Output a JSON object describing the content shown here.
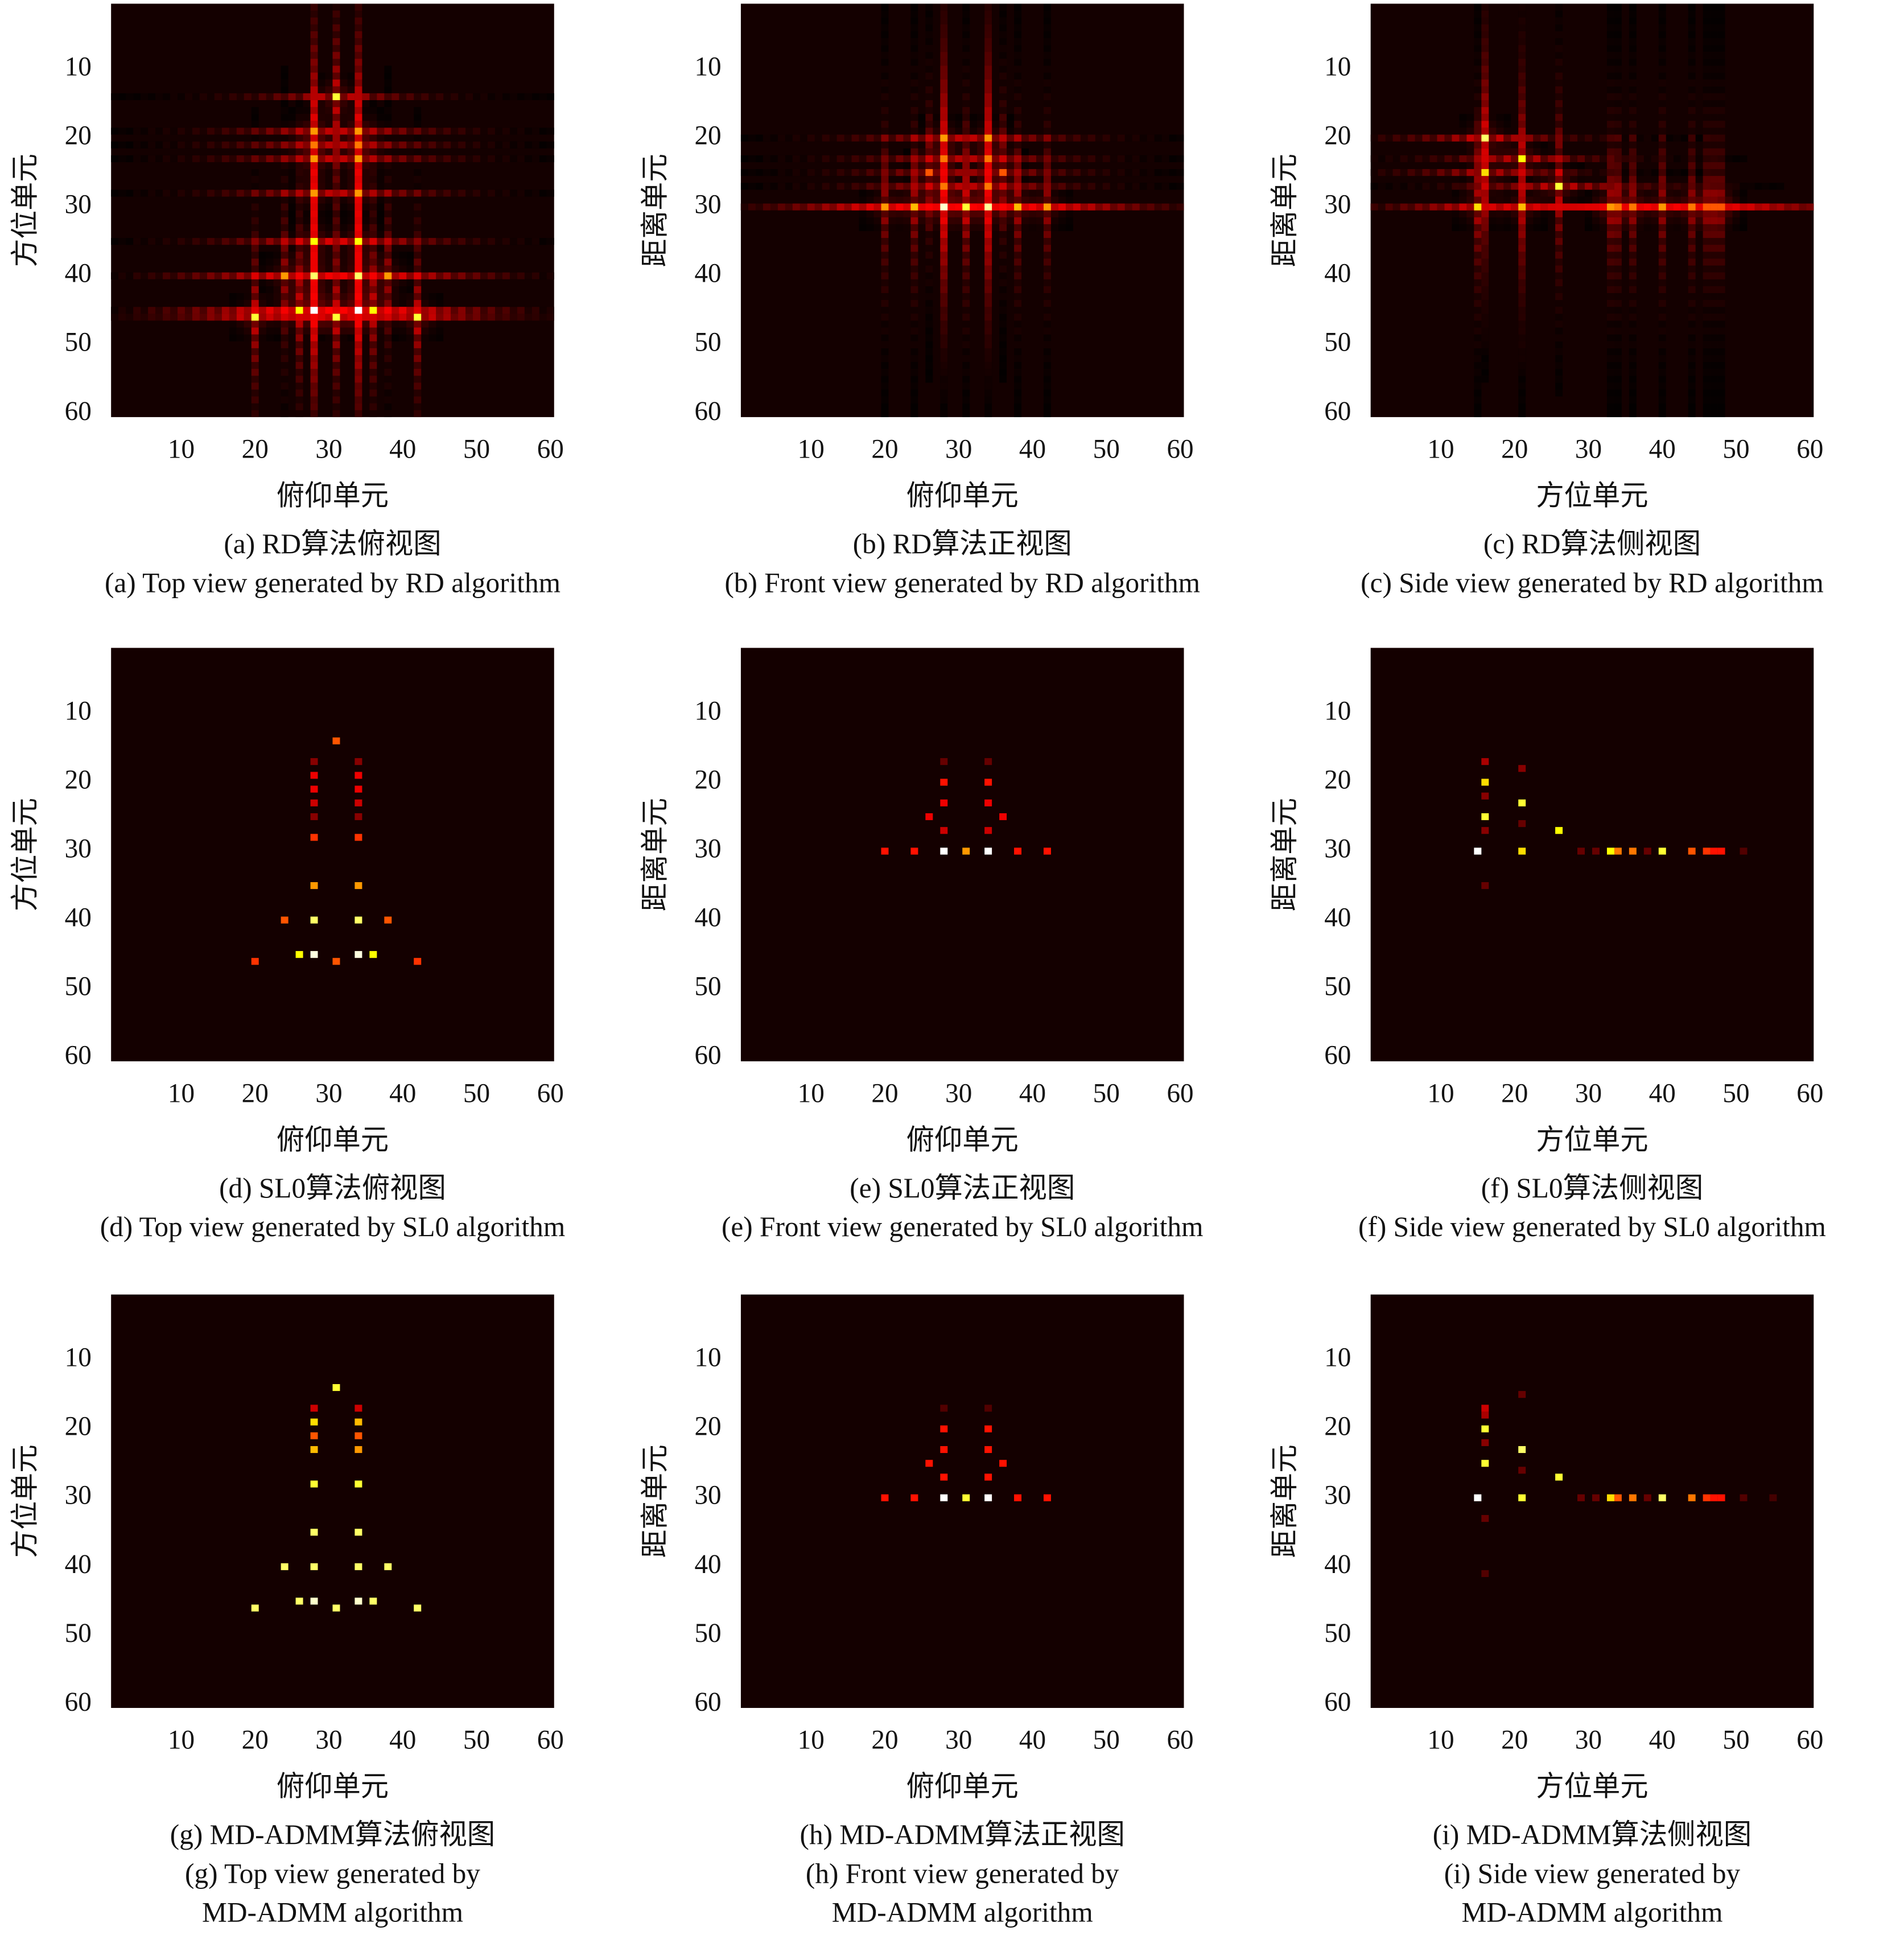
{
  "chart_data": [
    {
      "type": "heatmap",
      "colormap": "hot",
      "sidelobes": true,
      "xlabel": "俯仰单元",
      "ylabel": "方位单元",
      "caption": [
        "(a) RD算法俯视图",
        "(a) Top view generated by RD algorithm"
      ],
      "xlim": [
        0.5,
        60.5
      ],
      "ylim": [
        0.5,
        60.5
      ],
      "y_reversed": true,
      "xticks": [
        10,
        20,
        30,
        40,
        50,
        60
      ],
      "yticks": [
        10,
        20,
        30,
        40,
        50,
        60
      ],
      "x": [
        31,
        28,
        28,
        28,
        28,
        34,
        34,
        34,
        34,
        28,
        34,
        24,
        28,
        34,
        38,
        20,
        26,
        28,
        31,
        34,
        36,
        42
      ],
      "y": [
        14,
        19,
        21,
        23,
        28,
        19,
        21,
        23,
        28,
        35,
        35,
        40,
        40,
        40,
        40,
        46,
        45,
        45,
        46,
        45,
        45,
        46
      ],
      "values": [
        0.8,
        0.6,
        0.55,
        0.6,
        0.6,
        0.6,
        0.55,
        0.6,
        0.6,
        0.75,
        0.75,
        0.6,
        0.85,
        0.85,
        0.6,
        0.8,
        0.75,
        1.0,
        0.8,
        1.0,
        0.75,
        0.8
      ]
    },
    {
      "type": "heatmap",
      "colormap": "hot",
      "sidelobes": true,
      "xlabel": "俯仰单元",
      "ylabel": "距离单元",
      "caption": [
        "(b) RD算法正视图",
        "(b) Front view generated by RD algorithm"
      ],
      "xlim": [
        0.5,
        60.5
      ],
      "ylim": [
        0.5,
        60.5
      ],
      "y_reversed": true,
      "xticks": [
        10,
        20,
        30,
        40,
        50,
        60
      ],
      "yticks": [
        10,
        20,
        30,
        40,
        50,
        60
      ],
      "x": [
        20,
        24,
        28,
        31,
        34,
        38,
        42,
        28,
        34,
        28,
        34,
        26,
        36,
        28,
        34
      ],
      "y": [
        30,
        30,
        30,
        30,
        30,
        30,
        30,
        20,
        20,
        23,
        23,
        25,
        25,
        27,
        27
      ],
      "values": [
        0.6,
        0.65,
        0.95,
        0.8,
        0.9,
        0.65,
        0.6,
        0.6,
        0.6,
        0.55,
        0.55,
        0.5,
        0.5,
        0.55,
        0.55
      ]
    },
    {
      "type": "heatmap",
      "colormap": "hot",
      "sidelobes": true,
      "xlabel": "方位单元",
      "ylabel": "距离单元",
      "caption": [
        "(c) RD算法侧视图",
        "(c) Side view generated by RD algorithm"
      ],
      "xlim": [
        0.5,
        60.5
      ],
      "ylim": [
        0.5,
        60.5
      ],
      "y_reversed": true,
      "xticks": [
        10,
        20,
        30,
        40,
        50,
        60
      ],
      "yticks": [
        10,
        20,
        30,
        40,
        50,
        60
      ],
      "x": [
        15,
        16,
        16,
        21,
        21,
        26,
        33,
        34,
        36,
        40,
        44,
        46,
        47,
        48
      ],
      "y": [
        30,
        20,
        25,
        23,
        30,
        27,
        30,
        30,
        30,
        30,
        30,
        30,
        30,
        30
      ],
      "values": [
        0.7,
        0.85,
        0.7,
        0.75,
        0.65,
        0.8,
        0.6,
        0.55,
        0.55,
        0.6,
        0.55,
        0.5,
        0.5,
        0.5
      ]
    },
    {
      "type": "heatmap",
      "colormap": "hot",
      "sidelobes": false,
      "xlabel": "俯仰单元",
      "ylabel": "方位单元",
      "caption": [
        "(d) SL0算法俯视图",
        "(d) Top view generated by SL0 algorithm"
      ],
      "xlim": [
        0.5,
        60.5
      ],
      "ylim": [
        0.5,
        60.5
      ],
      "y_reversed": true,
      "xticks": [
        10,
        20,
        30,
        40,
        50,
        60
      ],
      "yticks": [
        10,
        20,
        30,
        40,
        50,
        60
      ],
      "x": [
        31,
        28,
        34,
        28,
        28,
        28,
        28,
        28,
        34,
        34,
        34,
        34,
        34,
        28,
        34,
        24,
        28,
        34,
        38,
        20,
        26,
        28,
        31,
        34,
        36,
        42
      ],
      "y": [
        14,
        17,
        17,
        19,
        21,
        23,
        25,
        28,
        19,
        21,
        23,
        25,
        28,
        35,
        35,
        40,
        40,
        40,
        40,
        46,
        45,
        45,
        46,
        45,
        45,
        46
      ],
      "values": [
        0.5,
        0.2,
        0.2,
        0.35,
        0.35,
        0.3,
        0.2,
        0.45,
        0.35,
        0.35,
        0.3,
        0.2,
        0.45,
        0.6,
        0.6,
        0.5,
        0.85,
        0.85,
        0.5,
        0.45,
        0.75,
        0.97,
        0.5,
        0.97,
        0.75,
        0.45
      ]
    },
    {
      "type": "heatmap",
      "colormap": "hot",
      "sidelobes": false,
      "xlabel": "俯仰单元",
      "ylabel": "距离单元",
      "caption": [
        "(e) SL0算法正视图",
        "(e) Front view generated by SL0 algorithm"
      ],
      "xlim": [
        0.5,
        60.5
      ],
      "ylim": [
        0.5,
        60.5
      ],
      "y_reversed": true,
      "xticks": [
        10,
        20,
        30,
        40,
        50,
        60
      ],
      "yticks": [
        10,
        20,
        30,
        40,
        50,
        60
      ],
      "x": [
        20,
        24,
        28,
        31,
        34,
        38,
        42,
        28,
        34,
        28,
        34,
        26,
        36,
        28,
        34,
        28,
        34
      ],
      "y": [
        30,
        30,
        30,
        30,
        30,
        30,
        30,
        20,
        20,
        23,
        23,
        25,
        25,
        27,
        27,
        17,
        17
      ],
      "values": [
        0.4,
        0.4,
        1.0,
        0.6,
        1.0,
        0.4,
        0.4,
        0.4,
        0.4,
        0.35,
        0.35,
        0.35,
        0.35,
        0.3,
        0.3,
        0.15,
        0.15
      ]
    },
    {
      "type": "heatmap",
      "colormap": "hot",
      "sidelobes": false,
      "xlabel": "方位单元",
      "ylabel": "距离单元",
      "caption": [
        "(f) SL0算法侧视图",
        "(f) Side view generated by SL0 algorithm"
      ],
      "xlim": [
        0.5,
        60.5
      ],
      "ylim": [
        0.5,
        60.5
      ],
      "y_reversed": true,
      "xticks": [
        10,
        20,
        30,
        40,
        50,
        60
      ],
      "yticks": [
        10,
        20,
        30,
        40,
        50,
        60
      ],
      "x": [
        15,
        16,
        16,
        21,
        21,
        26,
        33,
        34,
        36,
        40,
        44,
        46,
        47,
        48,
        16,
        16,
        16,
        16,
        21,
        21,
        29,
        31,
        38,
        51
      ],
      "y": [
        30,
        20,
        25,
        23,
        30,
        27,
        30,
        30,
        30,
        30,
        30,
        30,
        30,
        30,
        17,
        22,
        27,
        35,
        18,
        26,
        30,
        30,
        30,
        30
      ],
      "values": [
        1.0,
        0.7,
        0.8,
        0.8,
        0.7,
        0.75,
        0.75,
        0.55,
        0.55,
        0.8,
        0.5,
        0.45,
        0.4,
        0.4,
        0.25,
        0.2,
        0.2,
        0.15,
        0.2,
        0.15,
        0.15,
        0.15,
        0.15,
        0.12
      ]
    },
    {
      "type": "heatmap",
      "colormap": "hot",
      "sidelobes": false,
      "xlabel": "俯仰单元",
      "ylabel": "方位单元",
      "caption": [
        "(g) MD-ADMM算法俯视图",
        "(g) Top view generated by",
        "MD-ADMM algorithm"
      ],
      "xlim": [
        0.5,
        60.5
      ],
      "ylim": [
        0.5,
        60.5
      ],
      "y_reversed": true,
      "xticks": [
        10,
        20,
        30,
        40,
        50,
        60
      ],
      "yticks": [
        10,
        20,
        30,
        40,
        50,
        60
      ],
      "x": [
        31,
        28,
        34,
        28,
        28,
        28,
        28,
        34,
        34,
        34,
        34,
        28,
        34,
        24,
        28,
        34,
        38,
        20,
        26,
        28,
        31,
        34,
        36,
        42
      ],
      "y": [
        14,
        17,
        17,
        19,
        21,
        23,
        28,
        19,
        21,
        23,
        28,
        35,
        35,
        40,
        40,
        40,
        40,
        46,
        45,
        45,
        46,
        45,
        45,
        46
      ],
      "values": [
        0.8,
        0.3,
        0.3,
        0.7,
        0.5,
        0.65,
        0.8,
        0.65,
        0.5,
        0.6,
        0.8,
        0.85,
        0.85,
        0.85,
        0.85,
        0.85,
        0.85,
        0.85,
        0.85,
        0.95,
        0.85,
        0.95,
        0.85,
        0.85
      ]
    },
    {
      "type": "heatmap",
      "colormap": "hot",
      "sidelobes": false,
      "xlabel": "俯仰单元",
      "ylabel": "距离单元",
      "caption": [
        "(h) MD-ADMM算法正视图",
        "(h) Front view generated by",
        "MD-ADMM algorithm"
      ],
      "xlim": [
        0.5,
        60.5
      ],
      "ylim": [
        0.5,
        60.5
      ],
      "y_reversed": true,
      "xticks": [
        10,
        20,
        30,
        40,
        50,
        60
      ],
      "yticks": [
        10,
        20,
        30,
        40,
        50,
        60
      ],
      "x": [
        20,
        24,
        28,
        31,
        34,
        38,
        42,
        28,
        34,
        28,
        34,
        26,
        36,
        28,
        34,
        28,
        34
      ],
      "y": [
        30,
        30,
        30,
        30,
        30,
        30,
        30,
        20,
        20,
        23,
        23,
        25,
        25,
        27,
        27,
        17,
        17
      ],
      "values": [
        0.4,
        0.4,
        1.0,
        0.8,
        1.0,
        0.4,
        0.4,
        0.4,
        0.4,
        0.4,
        0.4,
        0.4,
        0.4,
        0.4,
        0.4,
        0.12,
        0.12
      ]
    },
    {
      "type": "heatmap",
      "colormap": "hot",
      "sidelobes": false,
      "xlabel": "方位单元",
      "ylabel": "距离单元",
      "caption": [
        "(i) MD-ADMM算法侧视图",
        "(i) Side view generated by",
        "MD-ADMM algorithm"
      ],
      "xlim": [
        0.5,
        60.5
      ],
      "ylim": [
        0.5,
        60.5
      ],
      "y_reversed": true,
      "xticks": [
        10,
        20,
        30,
        40,
        50,
        60
      ],
      "yticks": [
        10,
        20,
        30,
        40,
        50,
        60
      ],
      "x": [
        15,
        16,
        16,
        21,
        21,
        26,
        33,
        34,
        36,
        40,
        44,
        46,
        47,
        48,
        16,
        16,
        16,
        16,
        16,
        21,
        21,
        29,
        31,
        38,
        51,
        55
      ],
      "y": [
        30,
        20,
        25,
        23,
        30,
        27,
        30,
        30,
        30,
        30,
        30,
        30,
        30,
        30,
        17,
        18,
        22,
        33,
        41,
        15,
        26,
        30,
        30,
        30,
        30,
        30
      ],
      "values": [
        1.0,
        0.8,
        0.8,
        0.85,
        0.8,
        0.8,
        0.7,
        0.5,
        0.55,
        0.85,
        0.55,
        0.45,
        0.4,
        0.4,
        0.3,
        0.25,
        0.2,
        0.15,
        0.12,
        0.15,
        0.15,
        0.15,
        0.15,
        0.15,
        0.12,
        0.1
      ]
    }
  ]
}
